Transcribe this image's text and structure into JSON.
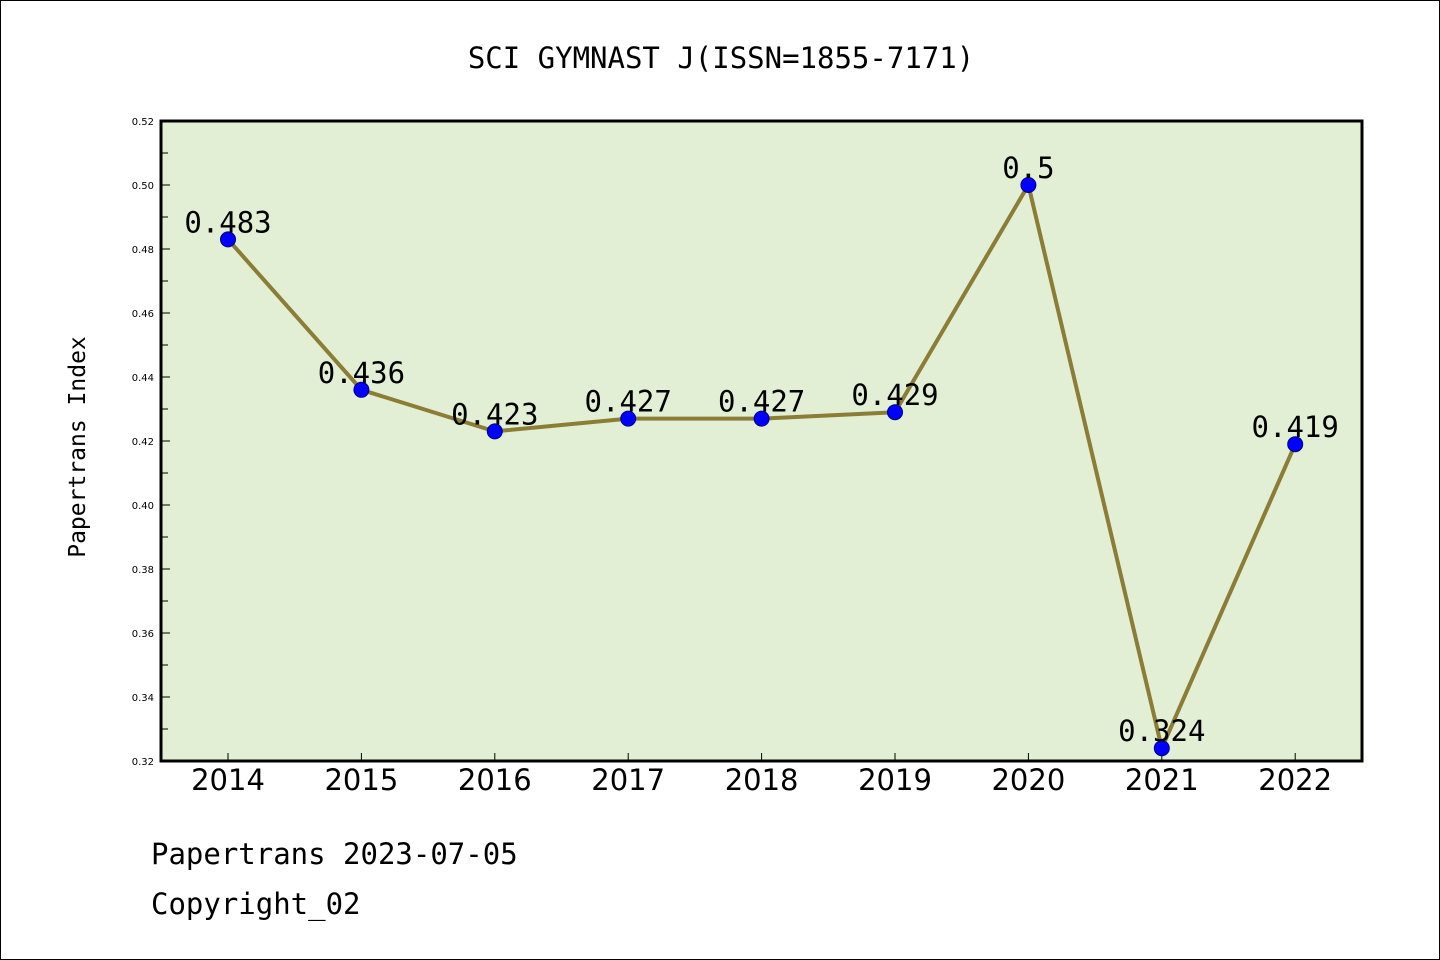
{
  "chart_data": {
    "type": "line",
    "title": "SCI GYMNAST J(ISSN=1855-7171)",
    "xlabel": "",
    "ylabel": "Papertrans Index",
    "categories": [
      "2014",
      "2015",
      "2016",
      "2017",
      "2018",
      "2019",
      "2020",
      "2021",
      "2022"
    ],
    "series": [
      {
        "values": [
          0.483,
          0.436,
          0.423,
          0.427,
          0.427,
          0.429,
          0.5,
          0.324,
          0.419
        ],
        "labels": [
          "0.483",
          "0.436",
          "0.423",
          "0.427",
          "0.427",
          "0.429",
          "0.5",
          "0.324",
          "0.419"
        ]
      }
    ],
    "ylim": [
      0.32,
      0.52
    ],
    "yticks": [
      "0.32",
      "0.34",
      "0.36",
      "0.38",
      "0.40",
      "0.42",
      "0.44",
      "0.46",
      "0.48",
      "0.50",
      "0.52"
    ],
    "grid": false,
    "colors": {
      "plot_background": "#e2efd4",
      "line": "#8b7d35",
      "marker": "#0000ff",
      "axis": "#000000"
    }
  },
  "footer": {
    "date_text": "Papertrans 2023-07-05",
    "copyright_text": "Copyright_02"
  }
}
